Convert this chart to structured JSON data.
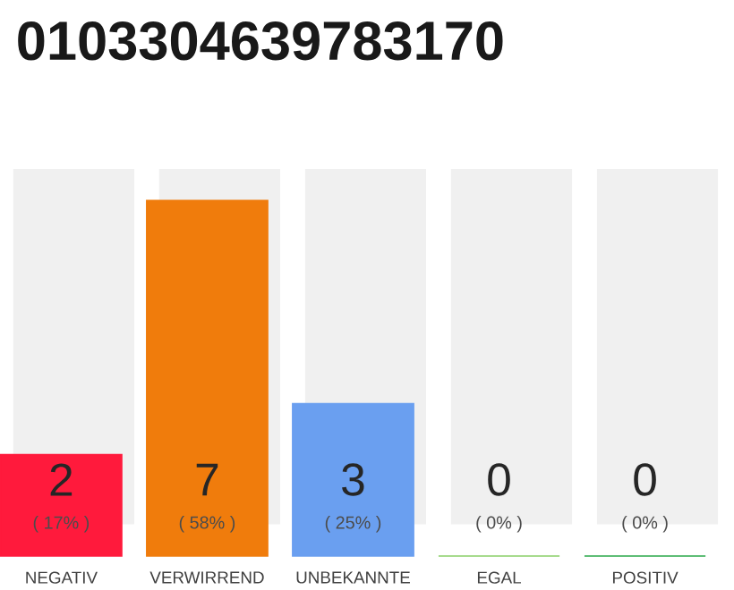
{
  "chart_data": {
    "type": "bar",
    "title": "0103304639783170",
    "categories": [
      "NEGATIV",
      "VERWIRREND",
      "UNBEKANNTE",
      "EGAL",
      "POSITIV"
    ],
    "values": [
      2,
      7,
      3,
      0,
      0
    ],
    "colors": [
      "#ff1a3c",
      "#f07c0c",
      "#6a9ff0",
      "#8bcf68",
      "#2aa84a"
    ],
    "annotations": [
      "( 17% )",
      "( 58% )",
      "( 25% )",
      "( 0% )",
      "( 0% )"
    ],
    "data_labels": true
  }
}
